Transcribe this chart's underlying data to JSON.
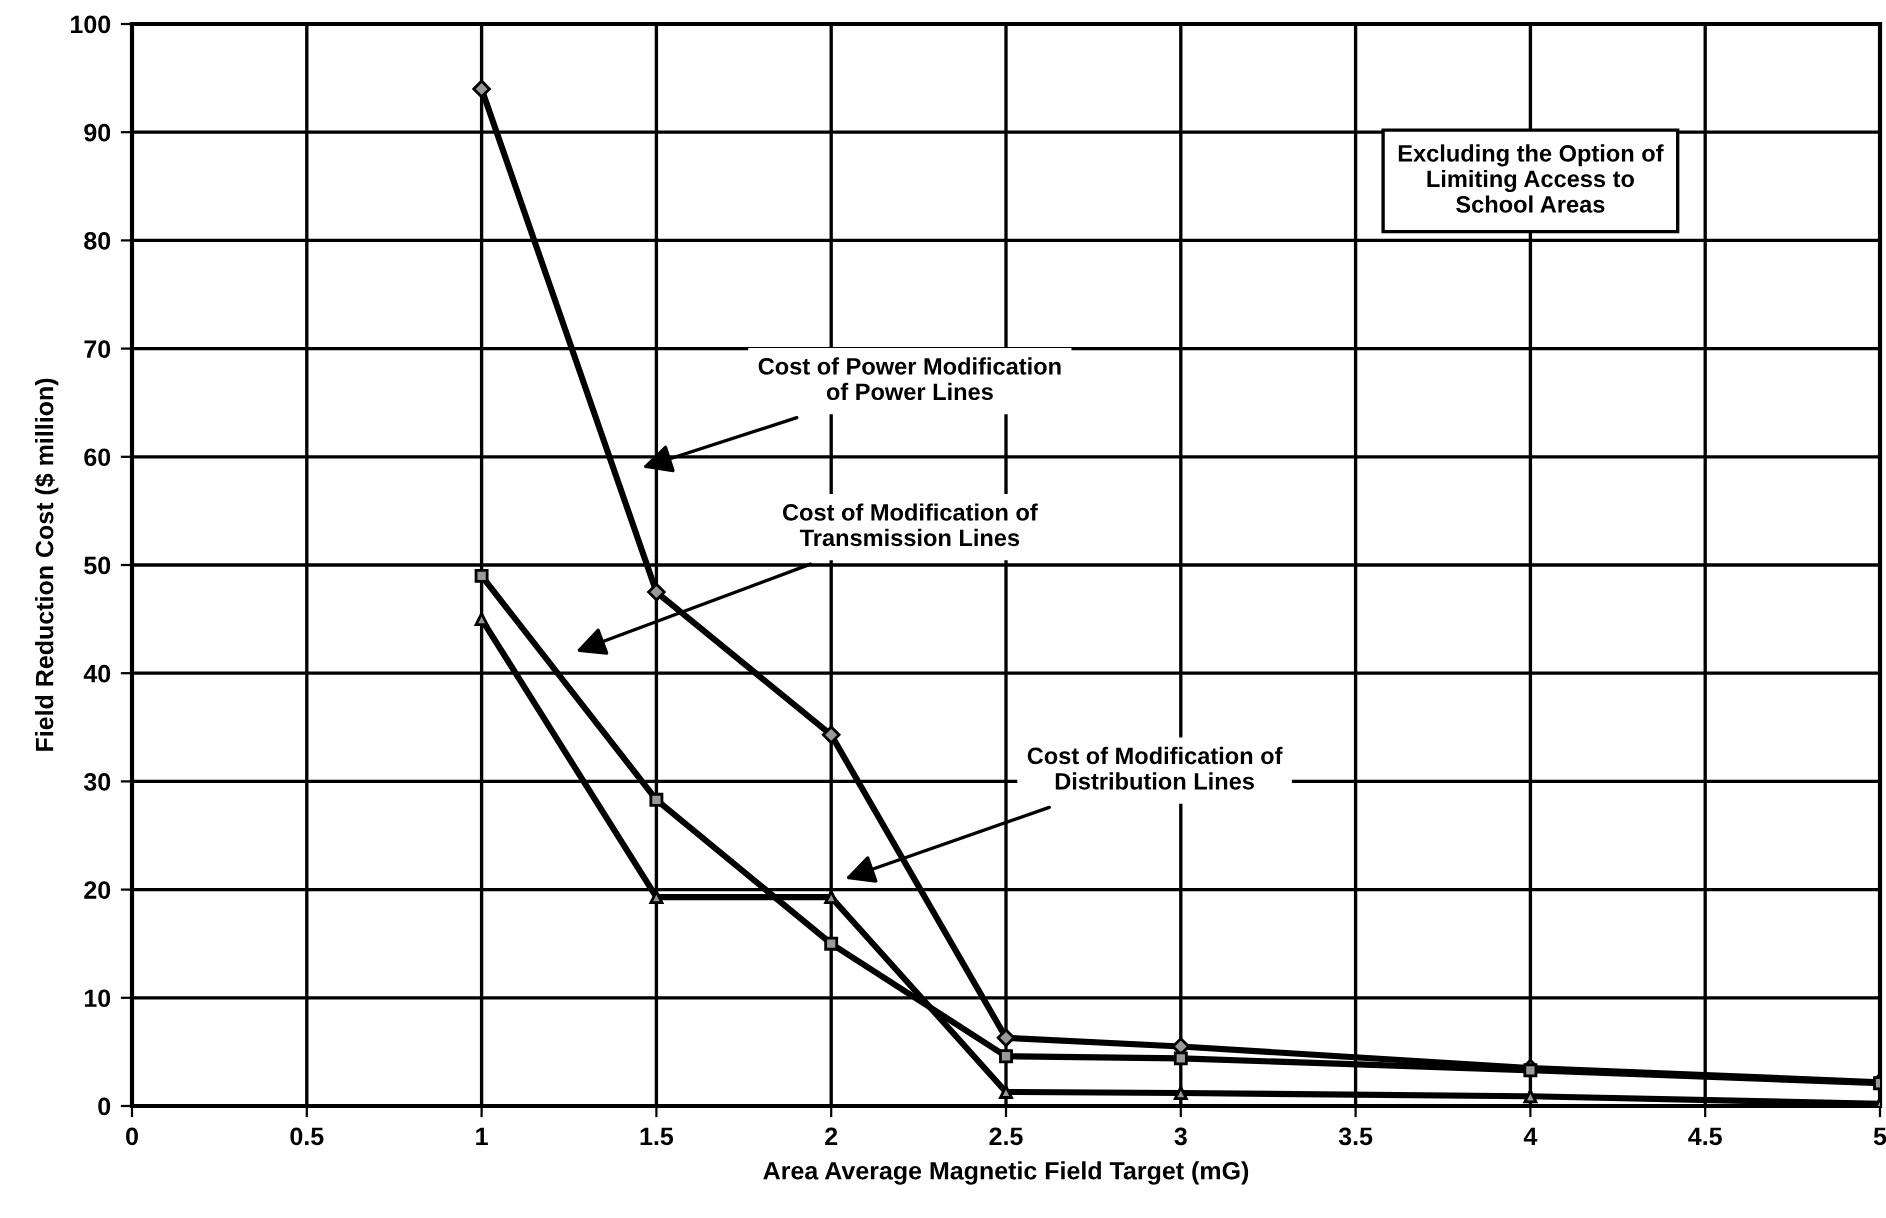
{
  "chart_data": {
    "type": "line",
    "xlabel": "Area Average Magnetic Field Target (mG)",
    "ylabel": "Field Reduction Cost ($ million)",
    "xlim": [
      0,
      5
    ],
    "ylim": [
      0,
      100
    ],
    "xticks": [
      0,
      0.5,
      1,
      1.5,
      2,
      2.5,
      3,
      3.5,
      4,
      4.5,
      5
    ],
    "yticks": [
      0,
      10,
      20,
      30,
      40,
      50,
      60,
      70,
      80,
      90,
      100
    ],
    "grid": true,
    "line_style": "solid",
    "x": [
      1,
      1.5,
      2,
      2.5,
      3,
      4,
      5
    ],
    "series": [
      {
        "color": "#000000",
        "marker": "diamond",
        "values": [
          94,
          47.5,
          34.3,
          6.3,
          5.5,
          3.5,
          2.2
        ]
      },
      {
        "color": "#000000",
        "marker": "square",
        "values": [
          49,
          28.3,
          15,
          4.6,
          4.4,
          3.3,
          2.1
        ]
      },
      {
        "color": "#000000",
        "marker": "triangle",
        "values": [
          45,
          19.3,
          19.3,
          1.3,
          1.2,
          0.9,
          0.2
        ]
      }
    ],
    "annotations": [
      "Cost of Power Modification\nof Power Lines",
      "Cost of Modification of\nTransmission Lines",
      "Cost of Modification of\nDistribution Lines",
      "Excluding the Option of\nLimiting Access to\nSchool Areas"
    ]
  }
}
